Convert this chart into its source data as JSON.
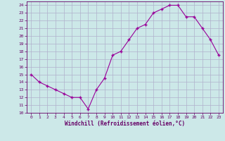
{
  "x": [
    0,
    1,
    2,
    3,
    4,
    5,
    6,
    7,
    8,
    9,
    10,
    11,
    12,
    13,
    14,
    15,
    16,
    17,
    18,
    19,
    20,
    21,
    22,
    23
  ],
  "y": [
    15,
    14,
    13.5,
    13,
    12.5,
    12,
    12,
    10.5,
    13,
    14.5,
    17.5,
    18,
    19.5,
    21,
    21.5,
    23,
    23.5,
    24,
    24,
    22.5,
    22.5,
    21,
    19.5,
    17.5
  ],
  "xlabel": "Windchill (Refroidissement éolien,°C)",
  "xlim": [
    -0.5,
    23.5
  ],
  "ylim": [
    10,
    24.5
  ],
  "yticks": [
    10,
    11,
    12,
    13,
    14,
    15,
    16,
    17,
    18,
    19,
    20,
    21,
    22,
    23,
    24
  ],
  "xticks": [
    0,
    1,
    2,
    3,
    4,
    5,
    6,
    7,
    8,
    9,
    10,
    11,
    12,
    13,
    14,
    15,
    16,
    17,
    18,
    19,
    20,
    21,
    22,
    23
  ],
  "line_color": "#990099",
  "marker": "+",
  "bg_color": "#cce8e8",
  "grid_color": "#b0b0cc",
  "tick_color": "#660066",
  "label_color": "#660066",
  "font_family": "monospace"
}
